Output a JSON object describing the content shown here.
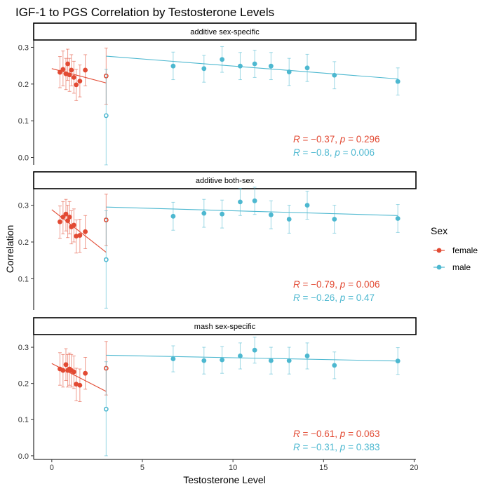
{
  "chart_data": {
    "type": "scatter",
    "title": "IGF-1 to PGS Correlation by Testosterone Levels",
    "xlabel": "Testosterone Level",
    "ylabel": "Correlation",
    "xlim": [
      -1.0,
      20.1
    ],
    "x_ticks": [
      "0",
      "5",
      "10",
      "15",
      "20"
    ],
    "x_tick_values": [
      0,
      5,
      10,
      15,
      20
    ],
    "legend": {
      "title": "Sex",
      "position": "right",
      "entries": [
        {
          "label": "female",
          "color": "#e24a33"
        },
        {
          "label": "male",
          "color": "#4db8d0"
        }
      ]
    },
    "panels": [
      {
        "strip": "additive sex-specific",
        "ylim": [
          -0.02,
          0.32
        ],
        "y_ticks": [
          "0.0",
          "0.1",
          "0.2",
          "0.3"
        ],
        "y_tick_values": [
          0.0,
          0.1,
          0.2,
          0.3
        ],
        "series": [
          {
            "name": "female",
            "color": "#e24a33",
            "points": [
              {
                "x": 0.45,
                "y": 0.232,
                "lo": 0.19,
                "hi": 0.275
              },
              {
                "x": 0.62,
                "y": 0.24,
                "lo": 0.195,
                "hi": 0.29
              },
              {
                "x": 0.78,
                "y": 0.228,
                "lo": 0.185,
                "hi": 0.27
              },
              {
                "x": 0.88,
                "y": 0.255,
                "lo": 0.21,
                "hi": 0.295
              },
              {
                "x": 0.98,
                "y": 0.225,
                "lo": 0.18,
                "hi": 0.27
              },
              {
                "x": 1.08,
                "y": 0.238,
                "lo": 0.195,
                "hi": 0.28
              },
              {
                "x": 1.22,
                "y": 0.218,
                "lo": 0.175,
                "hi": 0.262
              },
              {
                "x": 1.35,
                "y": 0.198,
                "lo": 0.155,
                "hi": 0.24
              },
              {
                "x": 1.55,
                "y": 0.208,
                "lo": 0.165,
                "hi": 0.252
              },
              {
                "x": 1.85,
                "y": 0.238,
                "lo": 0.195,
                "hi": 0.28
              },
              {
                "x": 3.0,
                "y": 0.222,
                "lo": 0.145,
                "hi": 0.298,
                "hollow": true
              }
            ],
            "fit": {
              "x": [
                0.0,
                3.0
              ],
              "y": [
                0.242,
                0.203
              ]
            }
          },
          {
            "name": "male",
            "color": "#4db8d0",
            "points": [
              {
                "x": 3.0,
                "y": 0.114,
                "lo": -0.02,
                "hi": 0.24,
                "hollow": true
              },
              {
                "x": 6.7,
                "y": 0.249,
                "lo": 0.212,
                "hi": 0.287
              },
              {
                "x": 8.4,
                "y": 0.242,
                "lo": 0.205,
                "hi": 0.278
              },
              {
                "x": 9.4,
                "y": 0.267,
                "lo": 0.232,
                "hi": 0.302
              },
              {
                "x": 10.4,
                "y": 0.249,
                "lo": 0.212,
                "hi": 0.286
              },
              {
                "x": 11.2,
                "y": 0.255,
                "lo": 0.218,
                "hi": 0.292
              },
              {
                "x": 12.1,
                "y": 0.249,
                "lo": 0.212,
                "hi": 0.286
              },
              {
                "x": 13.1,
                "y": 0.233,
                "lo": 0.196,
                "hi": 0.27
              },
              {
                "x": 14.1,
                "y": 0.244,
                "lo": 0.207,
                "hi": 0.281
              },
              {
                "x": 15.6,
                "y": 0.224,
                "lo": 0.187,
                "hi": 0.261
              },
              {
                "x": 19.1,
                "y": 0.207,
                "lo": 0.17,
                "hi": 0.244
              }
            ],
            "fit": {
              "x": [
                3.0,
                19.1
              ],
              "y": [
                0.276,
                0.214
              ]
            }
          }
        ],
        "stats": [
          {
            "r": "−0.37",
            "p": "0.296",
            "color": "#e24a33"
          },
          {
            "r": "−0.8",
            "p": "0.006",
            "color": "#4db8d0"
          }
        ]
      },
      {
        "strip": "additive both-sex",
        "ylim": [
          0.015,
          0.345
        ],
        "y_ticks": [
          "0.1",
          "0.2",
          "0.3"
        ],
        "y_tick_values": [
          0.1,
          0.2,
          0.3
        ],
        "series": [
          {
            "name": "female",
            "color": "#e24a33",
            "points": [
              {
                "x": 0.45,
                "y": 0.255,
                "lo": 0.21,
                "hi": 0.298
              },
              {
                "x": 0.62,
                "y": 0.268,
                "lo": 0.222,
                "hi": 0.31
              },
              {
                "x": 0.78,
                "y": 0.276,
                "lo": 0.23,
                "hi": 0.316
              },
              {
                "x": 0.88,
                "y": 0.258,
                "lo": 0.212,
                "hi": 0.3
              },
              {
                "x": 0.98,
                "y": 0.268,
                "lo": 0.222,
                "hi": 0.31
              },
              {
                "x": 1.08,
                "y": 0.241,
                "lo": 0.195,
                "hi": 0.285
              },
              {
                "x": 1.22,
                "y": 0.246,
                "lo": 0.2,
                "hi": 0.29
              },
              {
                "x": 1.35,
                "y": 0.216,
                "lo": 0.17,
                "hi": 0.26
              },
              {
                "x": 1.55,
                "y": 0.218,
                "lo": 0.172,
                "hi": 0.262
              },
              {
                "x": 1.85,
                "y": 0.228,
                "lo": 0.182,
                "hi": 0.272
              },
              {
                "x": 3.0,
                "y": 0.26,
                "lo": 0.19,
                "hi": 0.33,
                "hollow": true
              }
            ],
            "fit": {
              "x": [
                0.0,
                3.0
              ],
              "y": [
                0.288,
                0.172
              ]
            }
          },
          {
            "name": "male",
            "color": "#4db8d0",
            "points": [
              {
                "x": 3.0,
                "y": 0.152,
                "lo": 0.02,
                "hi": 0.285,
                "hollow": true
              },
              {
                "x": 6.7,
                "y": 0.27,
                "lo": 0.232,
                "hi": 0.308
              },
              {
                "x": 8.4,
                "y": 0.278,
                "lo": 0.24,
                "hi": 0.316
              },
              {
                "x": 9.4,
                "y": 0.276,
                "lo": 0.238,
                "hi": 0.314
              },
              {
                "x": 10.4,
                "y": 0.309,
                "lo": 0.272,
                "hi": 0.346
              },
              {
                "x": 11.2,
                "y": 0.312,
                "lo": 0.275,
                "hi": 0.349
              },
              {
                "x": 12.1,
                "y": 0.274,
                "lo": 0.236,
                "hi": 0.312
              },
              {
                "x": 13.1,
                "y": 0.262,
                "lo": 0.224,
                "hi": 0.3
              },
              {
                "x": 14.1,
                "y": 0.3,
                "lo": 0.262,
                "hi": 0.338
              },
              {
                "x": 15.6,
                "y": 0.262,
                "lo": 0.224,
                "hi": 0.3
              },
              {
                "x": 19.1,
                "y": 0.264,
                "lo": 0.226,
                "hi": 0.302
              }
            ],
            "fit": {
              "x": [
                3.0,
                19.1
              ],
              "y": [
                0.295,
                0.272
              ]
            }
          }
        ],
        "stats": [
          {
            "r": "−0.79",
            "p": "0.006",
            "color": "#e24a33"
          },
          {
            "r": "−0.26",
            "p": "0.47",
            "color": "#4db8d0"
          }
        ]
      },
      {
        "strip": "mash sex-specific",
        "ylim": [
          -0.01,
          0.335
        ],
        "y_ticks": [
          "0.0",
          "0.1",
          "0.2",
          "0.3"
        ],
        "y_tick_values": [
          0.0,
          0.1,
          0.2,
          0.3
        ],
        "series": [
          {
            "name": "female",
            "color": "#e24a33",
            "points": [
              {
                "x": 0.45,
                "y": 0.24,
                "lo": 0.195,
                "hi": 0.285
              },
              {
                "x": 0.62,
                "y": 0.236,
                "lo": 0.19,
                "hi": 0.28
              },
              {
                "x": 0.78,
                "y": 0.252,
                "lo": 0.208,
                "hi": 0.296
              },
              {
                "x": 0.88,
                "y": 0.236,
                "lo": 0.19,
                "hi": 0.28
              },
              {
                "x": 0.98,
                "y": 0.24,
                "lo": 0.195,
                "hi": 0.284
              },
              {
                "x": 1.08,
                "y": 0.236,
                "lo": 0.19,
                "hi": 0.28
              },
              {
                "x": 1.22,
                "y": 0.232,
                "lo": 0.186,
                "hi": 0.276
              },
              {
                "x": 1.35,
                "y": 0.198,
                "lo": 0.152,
                "hi": 0.242
              },
              {
                "x": 1.55,
                "y": 0.195,
                "lo": 0.15,
                "hi": 0.24
              },
              {
                "x": 1.85,
                "y": 0.228,
                "lo": 0.184,
                "hi": 0.272
              },
              {
                "x": 3.0,
                "y": 0.242,
                "lo": 0.168,
                "hi": 0.316,
                "hollow": true
              }
            ],
            "fit": {
              "x": [
                0.0,
                3.0
              ],
              "y": [
                0.255,
                0.178
              ]
            }
          },
          {
            "name": "male",
            "color": "#4db8d0",
            "points": [
              {
                "x": 3.0,
                "y": 0.129,
                "lo": 0.0,
                "hi": 0.26,
                "hollow": true
              },
              {
                "x": 6.7,
                "y": 0.268,
                "lo": 0.232,
                "hi": 0.304
              },
              {
                "x": 8.4,
                "y": 0.263,
                "lo": 0.226,
                "hi": 0.3
              },
              {
                "x": 9.4,
                "y": 0.265,
                "lo": 0.228,
                "hi": 0.302
              },
              {
                "x": 10.4,
                "y": 0.276,
                "lo": 0.24,
                "hi": 0.312
              },
              {
                "x": 11.2,
                "y": 0.292,
                "lo": 0.256,
                "hi": 0.328
              },
              {
                "x": 12.1,
                "y": 0.263,
                "lo": 0.226,
                "hi": 0.3
              },
              {
                "x": 13.1,
                "y": 0.263,
                "lo": 0.226,
                "hi": 0.3
              },
              {
                "x": 14.1,
                "y": 0.276,
                "lo": 0.24,
                "hi": 0.312
              },
              {
                "x": 15.6,
                "y": 0.25,
                "lo": 0.213,
                "hi": 0.287
              },
              {
                "x": 19.1,
                "y": 0.262,
                "lo": 0.225,
                "hi": 0.299
              }
            ],
            "fit": {
              "x": [
                3.0,
                19.1
              ],
              "y": [
                0.278,
                0.262
              ]
            }
          }
        ],
        "stats": [
          {
            "r": "−0.61",
            "p": "0.063",
            "color": "#e24a33"
          },
          {
            "r": "−0.31",
            "p": "0.383",
            "color": "#4db8d0"
          }
        ]
      }
    ]
  }
}
